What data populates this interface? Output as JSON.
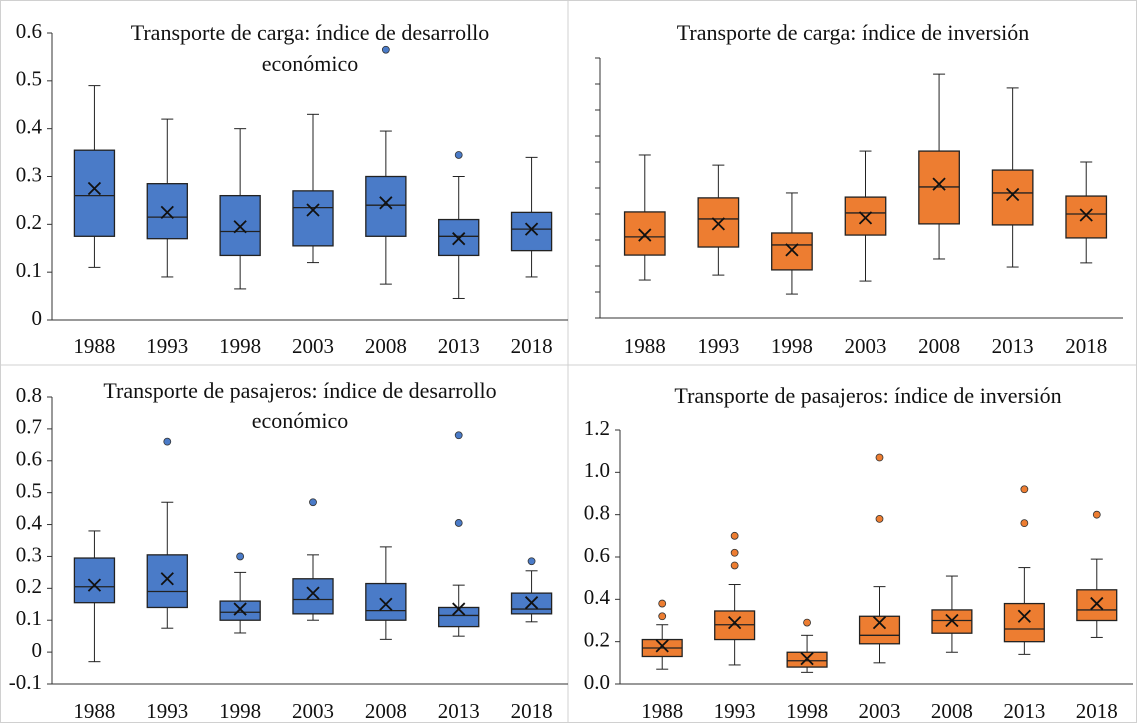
{
  "chart_data": [
    {
      "type": "box",
      "title": [
        "Transporte de carga: índice de desarrollo",
        "económico"
      ],
      "color": "#4a7bc8",
      "categories": [
        "1988",
        "1993",
        "1998",
        "2003",
        "2008",
        "2013",
        "2018"
      ],
      "ylim": [
        0,
        0.6
      ],
      "yticks": [
        0,
        0.1,
        0.2,
        0.3,
        0.4,
        0.5,
        0.6
      ],
      "tick_labels": true,
      "boxes": [
        {
          "min": 0.11,
          "q1": 0.175,
          "median": 0.26,
          "q3": 0.355,
          "max": 0.49,
          "mean": 0.275,
          "outliers": []
        },
        {
          "min": 0.09,
          "q1": 0.17,
          "median": 0.215,
          "q3": 0.285,
          "max": 0.42,
          "mean": 0.225,
          "outliers": []
        },
        {
          "min": 0.065,
          "q1": 0.135,
          "median": 0.185,
          "q3": 0.26,
          "max": 0.4,
          "mean": 0.195,
          "outliers": []
        },
        {
          "min": 0.12,
          "q1": 0.155,
          "median": 0.235,
          "q3": 0.27,
          "max": 0.43,
          "mean": 0.23,
          "outliers": []
        },
        {
          "min": 0.075,
          "q1": 0.175,
          "median": 0.24,
          "q3": 0.3,
          "max": 0.395,
          "mean": 0.245,
          "outliers": [
            0.565
          ]
        },
        {
          "min": 0.045,
          "q1": 0.135,
          "median": 0.175,
          "q3": 0.21,
          "max": 0.3,
          "mean": 0.17,
          "outliers": [
            0.345
          ]
        },
        {
          "min": 0.09,
          "q1": 0.145,
          "median": 0.19,
          "q3": 0.225,
          "max": 0.34,
          "mean": 0.19,
          "outliers": []
        }
      ]
    },
    {
      "type": "box",
      "title": [
        "Transporte de carga: índice de inversión"
      ],
      "color": "#ed7d31",
      "categories": [
        "1988",
        "1993",
        "1998",
        "2003",
        "2008",
        "2013",
        "2018"
      ],
      "ylim": [
        0,
        10
      ],
      "yticks": [
        0,
        1,
        2,
        3,
        4,
        5,
        6,
        7,
        8,
        9,
        10
      ],
      "tick_labels": false,
      "boxes": [
        {
          "min": 1.46,
          "q1": 2.42,
          "median": 3.12,
          "q3": 4.08,
          "max": 6.27,
          "mean": 3.19,
          "outliers": []
        },
        {
          "min": 1.65,
          "q1": 2.73,
          "median": 3.81,
          "q3": 4.62,
          "max": 5.88,
          "mean": 3.62,
          "outliers": []
        },
        {
          "min": 0.92,
          "q1": 1.85,
          "median": 2.81,
          "q3": 3.27,
          "max": 4.81,
          "mean": 2.62,
          "outliers": []
        },
        {
          "min": 1.42,
          "q1": 3.19,
          "median": 4.04,
          "q3": 4.65,
          "max": 6.42,
          "mean": 3.85,
          "outliers": []
        },
        {
          "min": 2.27,
          "q1": 3.62,
          "median": 5.04,
          "q3": 6.42,
          "max": 9.38,
          "mean": 5.15,
          "outliers": []
        },
        {
          "min": 1.96,
          "q1": 3.58,
          "median": 4.81,
          "q3": 5.69,
          "max": 8.85,
          "mean": 4.75,
          "outliers": []
        },
        {
          "min": 2.12,
          "q1": 3.08,
          "median": 4.0,
          "q3": 4.69,
          "max": 6.0,
          "mean": 3.96,
          "outliers": []
        }
      ]
    },
    {
      "type": "box",
      "title": [
        "Transporte de pasajeros: índice de desarrollo",
        "económico"
      ],
      "color": "#4a7bc8",
      "categories": [
        "1988",
        "1993",
        "1998",
        "2003",
        "2008",
        "2013",
        "2018"
      ],
      "ylim": [
        -0.1,
        0.8
      ],
      "yticks": [
        -0.1,
        0,
        0.1,
        0.2,
        0.3,
        0.4,
        0.5,
        0.6,
        0.7,
        0.8
      ],
      "tick_labels": true,
      "boxes": [
        {
          "min": -0.03,
          "q1": 0.155,
          "median": 0.205,
          "q3": 0.295,
          "max": 0.38,
          "mean": 0.21,
          "outliers": []
        },
        {
          "min": 0.075,
          "q1": 0.14,
          "median": 0.19,
          "q3": 0.305,
          "max": 0.47,
          "mean": 0.23,
          "outliers": [
            0.66
          ]
        },
        {
          "min": 0.06,
          "q1": 0.1,
          "median": 0.125,
          "q3": 0.16,
          "max": 0.25,
          "mean": 0.135,
          "outliers": [
            0.3
          ]
        },
        {
          "min": 0.1,
          "q1": 0.12,
          "median": 0.165,
          "q3": 0.23,
          "max": 0.305,
          "mean": 0.185,
          "outliers": [
            0.47
          ]
        },
        {
          "min": 0.04,
          "q1": 0.1,
          "median": 0.13,
          "q3": 0.215,
          "max": 0.33,
          "mean": 0.15,
          "outliers": []
        },
        {
          "min": 0.05,
          "q1": 0.08,
          "median": 0.115,
          "q3": 0.14,
          "max": 0.21,
          "mean": 0.135,
          "outliers": [
            0.405,
            0.68
          ]
        },
        {
          "min": 0.095,
          "q1": 0.12,
          "median": 0.135,
          "q3": 0.185,
          "max": 0.255,
          "mean": 0.155,
          "outliers": [
            0.285
          ]
        }
      ]
    },
    {
      "type": "box",
      "title": [
        "Transporte de pasajeros: índice de inversión"
      ],
      "color": "#ed7d31",
      "categories": [
        "1988",
        "1993",
        "1998",
        "2003",
        "2008",
        "2013",
        "2018"
      ],
      "ylim": [
        0,
        1.2
      ],
      "yticks": [
        {
          "value": 0,
          "label": "0.0"
        },
        0.2,
        0.4,
        0.6,
        0.8,
        {
          "value": 1,
          "label": "1.0"
        },
        1.2
      ],
      "tick_labels": true,
      "boxes": [
        {
          "min": 0.07,
          "q1": 0.13,
          "median": 0.17,
          "q3": 0.21,
          "max": 0.28,
          "mean": 0.18,
          "outliers": [
            0.32,
            0.38
          ]
        },
        {
          "min": 0.09,
          "q1": 0.21,
          "median": 0.28,
          "q3": 0.345,
          "max": 0.47,
          "mean": 0.29,
          "outliers": [
            0.56,
            0.62,
            0.7
          ]
        },
        {
          "min": 0.055,
          "q1": 0.08,
          "median": 0.11,
          "q3": 0.15,
          "max": 0.23,
          "mean": 0.12,
          "outliers": [
            0.29
          ]
        },
        {
          "min": 0.1,
          "q1": 0.19,
          "median": 0.23,
          "q3": 0.32,
          "max": 0.46,
          "mean": 0.29,
          "outliers": [
            0.78,
            1.07
          ]
        },
        {
          "min": 0.15,
          "q1": 0.24,
          "median": 0.3,
          "q3": 0.35,
          "max": 0.51,
          "mean": 0.3,
          "outliers": []
        },
        {
          "min": 0.14,
          "q1": 0.2,
          "median": 0.26,
          "q3": 0.38,
          "max": 0.55,
          "mean": 0.32,
          "outliers": [
            0.76,
            0.92
          ]
        },
        {
          "min": 0.22,
          "q1": 0.3,
          "median": 0.35,
          "q3": 0.445,
          "max": 0.59,
          "mean": 0.38,
          "outliers": [
            0.8
          ]
        }
      ]
    }
  ]
}
